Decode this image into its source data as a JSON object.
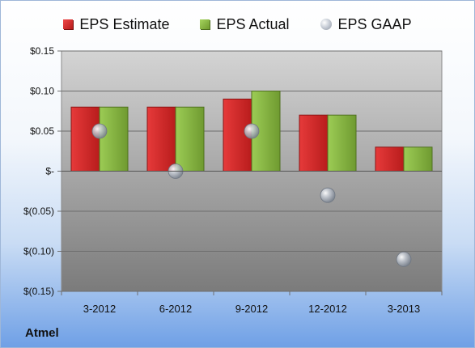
{
  "legend": {
    "estimate": "EPS Estimate",
    "actual": "EPS Actual",
    "gaap": "EPS GAAP"
  },
  "company": "Atmel",
  "colors": {
    "estimate": "#d42a2a",
    "actual": "#8ab648",
    "gaap": "#b9c0ca"
  },
  "chart_data": {
    "type": "bar",
    "categories": [
      "3-2012",
      "6-2012",
      "9-2012",
      "12-2012",
      "3-2013"
    ],
    "series": [
      {
        "name": "EPS Estimate",
        "values": [
          0.08,
          0.08,
          0.09,
          0.07,
          0.03
        ]
      },
      {
        "name": "EPS Actual",
        "values": [
          0.08,
          0.08,
          0.1,
          0.07,
          0.03
        ]
      },
      {
        "name": "EPS GAAP",
        "marker": "circle",
        "values": [
          0.05,
          0.0,
          0.05,
          -0.03,
          -0.11
        ]
      }
    ],
    "ylim": [
      -0.15,
      0.15
    ],
    "yticks": [
      0.15,
      0.1,
      0.05,
      0,
      -0.05,
      -0.1,
      -0.15
    ],
    "ytick_labels": [
      "$0.15",
      "$0.10",
      "$0.05",
      "$-",
      "$(0.05)",
      "$(0.10)",
      "$(0.15)"
    ],
    "grid": true,
    "legend_position": "top"
  }
}
